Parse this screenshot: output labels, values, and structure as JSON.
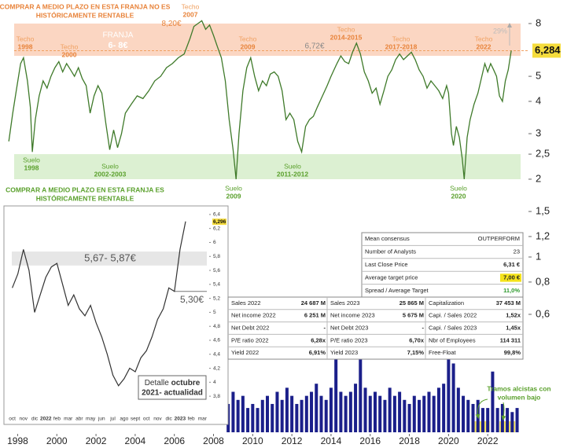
{
  "chart_data": [
    {
      "type": "line",
      "color": "#3f7a2a",
      "log_scale": true,
      "xlim": [
        1997.5,
        2024
      ],
      "xticks": [
        1998,
        2000,
        2002,
        2004,
        2006,
        2008,
        2010,
        2012,
        2014,
        2016,
        2018,
        2020,
        2022
      ],
      "ylim": [
        0.25,
        9.2
      ],
      "yticks": [
        8,
        5,
        4,
        3,
        {
          "value": 2.5,
          "label": "2,5"
        },
        2,
        {
          "value": 1.5,
          "label": "1,5"
        },
        {
          "value": 1.2,
          "label": "1,2"
        },
        1,
        {
          "value": 0.8,
          "label": "0,8"
        },
        {
          "value": 0.6,
          "label": "0,6"
        }
      ],
      "last_price": {
        "value": 6.284,
        "label": "6,284"
      },
      "x": [
        1997.55,
        1997.75,
        1997.95,
        1998.15,
        1998.3,
        1998.5,
        1998.65,
        1998.75,
        1998.9,
        1999.1,
        1999.3,
        1999.5,
        1999.7,
        1999.9,
        2000.1,
        2000.3,
        2000.5,
        2000.7,
        2000.9,
        2001.1,
        2001.3,
        2001.5,
        2001.7,
        2001.9,
        2002.1,
        2002.3,
        2002.5,
        2002.7,
        2002.9,
        2003.1,
        2003.3,
        2003.5,
        2003.8,
        2004.1,
        2004.4,
        2004.7,
        2005.0,
        2005.3,
        2005.6,
        2005.9,
        2006.2,
        2006.5,
        2006.8,
        2007.0,
        2007.2,
        2007.4,
        2007.6,
        2007.8,
        2008.0,
        2008.2,
        2008.4,
        2008.6,
        2008.8,
        2009.0,
        2009.15,
        2009.3,
        2009.5,
        2009.7,
        2009.9,
        2010.1,
        2010.3,
        2010.5,
        2010.7,
        2010.9,
        2011.1,
        2011.3,
        2011.5,
        2011.7,
        2011.9,
        2012.1,
        2012.3,
        2012.5,
        2012.7,
        2012.9,
        2013.1,
        2013.3,
        2013.5,
        2013.8,
        2014.0,
        2014.3,
        2014.5,
        2014.7,
        2014.9,
        2015.1,
        2015.3,
        2015.5,
        2015.7,
        2015.9,
        2016.1,
        2016.3,
        2016.5,
        2016.7,
        2016.9,
        2017.1,
        2017.3,
        2017.5,
        2017.7,
        2017.9,
        2018.1,
        2018.3,
        2018.5,
        2018.7,
        2018.9,
        2019.1,
        2019.3,
        2019.5,
        2019.7,
        2019.9,
        2020.0,
        2020.15,
        2020.25,
        2020.4,
        2020.55,
        2020.7,
        2020.8,
        2020.95,
        2021.1,
        2021.3,
        2021.5,
        2021.7,
        2021.85,
        2022.0,
        2022.15,
        2022.3,
        2022.45,
        2022.6,
        2022.75,
        2022.9,
        2023.05,
        2023.2
      ],
      "values": [
        2.8,
        3.6,
        4.5,
        5.6,
        5.9,
        4.8,
        3.8,
        2.55,
        3.4,
        4.2,
        4.8,
        4.5,
        5.0,
        5.4,
        5.7,
        5.2,
        5.6,
        5.3,
        5.0,
        5.4,
        4.9,
        4.6,
        3.6,
        4.2,
        4.6,
        4.3,
        3.3,
        2.6,
        3.1,
        2.65,
        3.0,
        3.6,
        3.9,
        4.2,
        4.1,
        4.4,
        4.8,
        5.0,
        5.4,
        5.6,
        5.9,
        6.1,
        7.0,
        7.8,
        8.0,
        8.2,
        7.6,
        7.9,
        7.2,
        6.5,
        5.9,
        4.8,
        3.4,
        2.6,
        2.0,
        3.0,
        4.4,
        5.4,
        5.9,
        5.0,
        4.4,
        4.8,
        4.6,
        5.1,
        5.2,
        5.0,
        4.4,
        3.4,
        3.6,
        3.4,
        2.8,
        2.55,
        3.2,
        3.4,
        3.5,
        3.8,
        4.1,
        4.6,
        5.0,
        5.6,
        6.0,
        5.7,
        5.6,
        6.2,
        6.72,
        6.1,
        5.2,
        4.8,
        4.3,
        4.5,
        3.9,
        4.4,
        5.0,
        5.3,
        5.8,
        6.1,
        5.8,
        6.0,
        6.2,
        5.8,
        5.3,
        5.0,
        4.5,
        4.8,
        4.6,
        4.4,
        4.1,
        4.6,
        4.3,
        3.0,
        2.7,
        3.2,
        2.9,
        2.4,
        2.0,
        2.9,
        3.4,
        3.9,
        4.3,
        5.0,
        5.6,
        5.2,
        5.6,
        5.3,
        5.0,
        4.2,
        4.0,
        4.8,
        5.3,
        6.284
      ],
      "bands": [
        {
          "range": [
            6,
            8
          ],
          "color": "#fbd6c2",
          "lines": [
            "FRANJA",
            "6- 8€"
          ]
        },
        {
          "range": [
            2,
            2.5
          ],
          "color": "#dcf0d2"
        }
      ],
      "warning_top": [
        "COMPRAR A MEDIO PLAZO EN ESTA FRANJA NO ES",
        "HISTÓRICAMENTE RENTABLE"
      ],
      "warning_bottom": [
        "COMPRAR A MEDIO PLAZO EN ESTA FRANJA ES",
        "HISTÓRICAMENTE RENTABLE"
      ],
      "peak_labels": [
        [
          "Techo",
          "1998"
        ],
        [
          "Techo",
          "2000"
        ],
        [
          "Techo",
          "2007"
        ],
        [
          "Techo",
          "2009"
        ],
        [
          "Techo",
          "2014-2015"
        ],
        [
          "Techo",
          "2017-2018"
        ],
        [
          "Techo",
          "2022"
        ]
      ],
      "trough_labels": [
        [
          "Suelo",
          "1998"
        ],
        [
          "Suelo",
          "2002-2003"
        ],
        [
          "Suelo",
          "2009"
        ],
        [
          "Suelo",
          "2011-2012"
        ],
        [
          "Suelo",
          "2020"
        ]
      ],
      "price_labels": [
        {
          "value": 8.2,
          "label": "8,20€"
        },
        {
          "value": 6.72,
          "label": "6,72€"
        }
      ],
      "upside_label": "29%"
    },
    {
      "type": "line",
      "color": "#333333",
      "categories": [
        "oct",
        null,
        "nov",
        null,
        "dic",
        null,
        "2022",
        null,
        "feb",
        null,
        "mar",
        null,
        "abr",
        null,
        "may",
        null,
        "jun",
        null,
        "jul",
        null,
        "ago",
        null,
        "sept",
        null,
        "oct",
        null,
        "nov",
        null,
        "dic",
        null,
        "2023",
        null,
        "feb",
        null,
        "mar",
        null
      ],
      "values": [
        5.35,
        5.55,
        5.9,
        5.6,
        5.0,
        5.25,
        5.5,
        5.65,
        5.7,
        5.4,
        5.1,
        5.25,
        5.05,
        4.95,
        5.1,
        4.85,
        4.65,
        4.4,
        4.1,
        3.95,
        4.05,
        4.2,
        4.15,
        4.35,
        4.45,
        4.65,
        4.9,
        5.05,
        5.35,
        5.3,
        5.9,
        6.3,
        null,
        null,
        null,
        null
      ],
      "ylim": [
        3.7,
        6.5
      ],
      "yticks": [
        {
          "value": 6.4,
          "label": "6,4"
        },
        {
          "value": 6.2,
          "label": "6,2"
        },
        6,
        {
          "value": 5.8,
          "label": "5,8"
        },
        {
          "value": 5.6,
          "label": "5,6"
        },
        {
          "value": 5.4,
          "label": "5,4"
        },
        {
          "value": 5.2,
          "label": "5,2"
        },
        5,
        {
          "value": 4.8,
          "label": "4,8"
        },
        {
          "value": 4.6,
          "label": "4,6"
        },
        {
          "value": 4.4,
          "label": "4,4"
        },
        {
          "value": 4.2,
          "label": "4,2"
        },
        4,
        {
          "value": 3.8,
          "label": "3,8"
        }
      ],
      "last_price": {
        "value": 6.296,
        "label": "6,296"
      },
      "band": {
        "range": [
          5.67,
          5.87
        ],
        "label": "5,67- 5,87€"
      },
      "support": {
        "value": 5.3,
        "label": "5,30€"
      },
      "caption": [
        "Detalle",
        "octubre",
        "2021- actualidad"
      ]
    },
    {
      "type": "bar",
      "color": "#1b1f8a",
      "ylim": [
        0,
        100
      ],
      "x": [
        2008.75,
        2009,
        2009.25,
        2009.5,
        2009.75,
        2010,
        2010.25,
        2010.5,
        2010.75,
        2011,
        2011.25,
        2011.5,
        2011.75,
        2012,
        2012.25,
        2012.5,
        2012.75,
        2013,
        2013.25,
        2013.5,
        2013.75,
        2014,
        2014.25,
        2014.5,
        2014.75,
        2015,
        2015.25,
        2015.5,
        2015.75,
        2016,
        2016.25,
        2016.5,
        2016.75,
        2017,
        2017.25,
        2017.5,
        2017.75,
        2018,
        2018.25,
        2018.5,
        2018.75,
        2019,
        2019.25,
        2019.5,
        2019.75,
        2020,
        2020.25,
        2020.5,
        2020.75,
        2021,
        2021.25,
        2021.5,
        2021.75,
        2022,
        2022.25,
        2022.5,
        2022.75,
        2023,
        2023.25,
        2023.5
      ],
      "values": [
        35,
        50,
        40,
        45,
        30,
        35,
        30,
        40,
        45,
        35,
        50,
        40,
        55,
        45,
        35,
        40,
        45,
        50,
        60,
        45,
        40,
        55,
        95,
        50,
        45,
        50,
        60,
        100,
        55,
        45,
        50,
        45,
        40,
        55,
        45,
        50,
        40,
        35,
        45,
        40,
        45,
        50,
        45,
        55,
        60,
        90,
        85,
        55,
        45,
        40,
        35,
        40,
        30,
        30,
        75,
        30,
        35,
        30,
        25,
        30
      ],
      "annotation": [
        "Tramos alcistas con",
        "volumen bajo"
      ]
    }
  ],
  "table": {
    "consensus": [
      [
        "Mean consensus",
        "OUTPERFORM"
      ],
      [
        "Number of Analysts",
        "23"
      ],
      [
        "Last Close Price",
        "6,31 €"
      ],
      [
        "Average target price",
        "7,00 €"
      ],
      [
        "Spread / Average Target",
        "11,0%"
      ]
    ],
    "fundamentals": [
      [
        "Sales 2022",
        "24 687 M",
        "Sales 2023",
        "25 865 M",
        "Capitalization",
        "37 453 M"
      ],
      [
        "Net income 2022",
        "6 251 M",
        "Net income 2023",
        "5 675 M",
        "Capi. / Sales 2022",
        "1,52x"
      ],
      [
        "Net Debt 2022",
        "-",
        "Net Debt 2023",
        "-",
        "Capi. / Sales 2023",
        "1,45x"
      ],
      [
        "P/E ratio 2022",
        "6,28x",
        "P/E ratio 2023",
        "6,70x",
        "Nbr of Employees",
        "114 311"
      ],
      [
        "Yield 2022",
        "6,91%",
        "Yield 2023",
        "7,15%",
        "Free-Float",
        "99,8%"
      ]
    ]
  }
}
